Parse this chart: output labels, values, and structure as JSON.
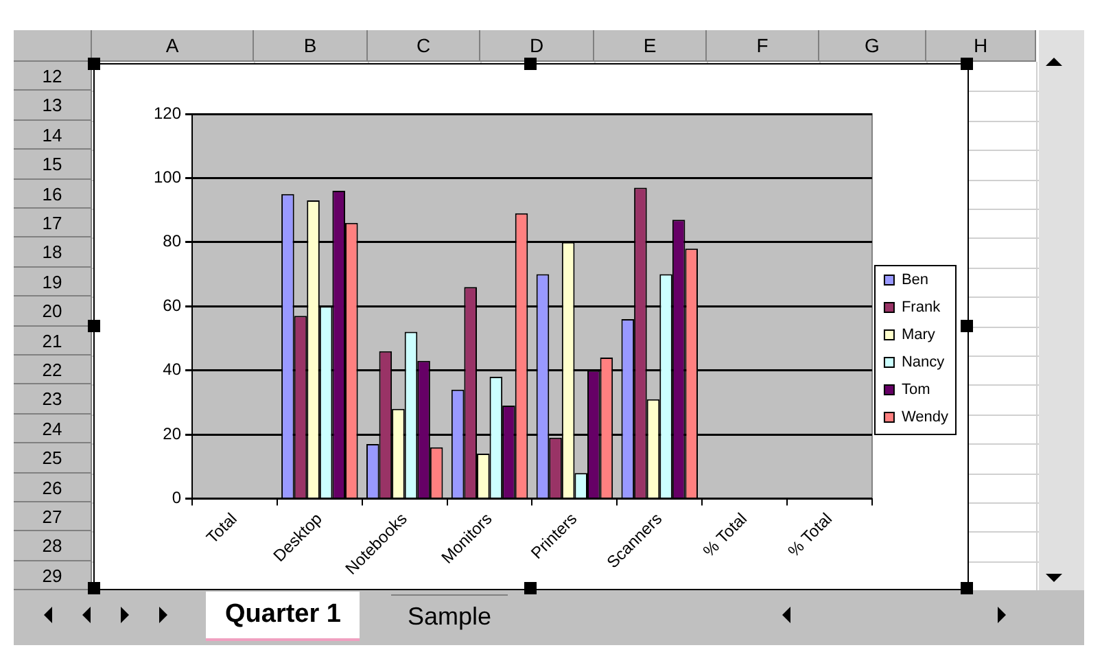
{
  "chart_data": {
    "type": "bar",
    "categories": [
      "Total",
      "Desktop",
      "Notebooks",
      "Monitors",
      "Printers",
      "Scanners",
      "% Total",
      "% Total"
    ],
    "series": [
      {
        "name": "Ben",
        "color": "#9999ff",
        "values": [
          null,
          95,
          17,
          34,
          70,
          56,
          null,
          null
        ]
      },
      {
        "name": "Frank",
        "color": "#993366",
        "values": [
          null,
          57,
          46,
          66,
          19,
          97,
          null,
          null
        ]
      },
      {
        "name": "Mary",
        "color": "#ffffcc",
        "values": [
          null,
          93,
          28,
          14,
          80,
          31,
          null,
          null
        ]
      },
      {
        "name": "Nancy",
        "color": "#ccffff",
        "values": [
          null,
          60,
          52,
          38,
          8,
          70,
          null,
          null
        ]
      },
      {
        "name": "Tom",
        "color": "#660066",
        "values": [
          null,
          96,
          43,
          29,
          40,
          87,
          null,
          null
        ]
      },
      {
        "name": "Wendy",
        "color": "#ff8080",
        "values": [
          null,
          86,
          16,
          89,
          44,
          78,
          null,
          null
        ]
      }
    ],
    "ylim": [
      0,
      120
    ],
    "yticks": [
      0,
      20,
      40,
      60,
      80,
      100,
      120
    ],
    "grid": "y",
    "legend": "right",
    "annotations": [
      "A",
      "B",
      "C",
      "D",
      "E",
      "F",
      "G",
      "H",
      "12",
      "13",
      "14",
      "15",
      "16",
      "17",
      "18",
      "19",
      "20",
      "21",
      "22",
      "23",
      "24",
      "25",
      "26",
      "27",
      "28",
      "29",
      "Quarter 1",
      "Sample"
    ]
  }
}
